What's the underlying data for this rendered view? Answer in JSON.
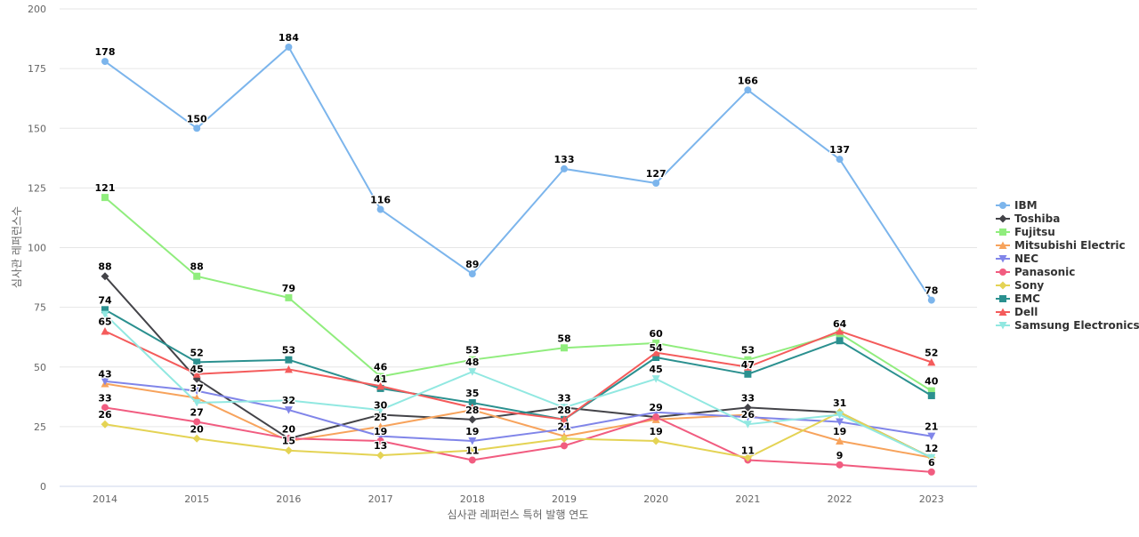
{
  "chart_data": {
    "type": "line",
    "xlabel": "심사관 레퍼런스 특허 발행 연도",
    "ylabel": "심사관 레퍼런스수",
    "ylim": [
      0,
      200
    ],
    "yticks": [
      0,
      25,
      50,
      75,
      100,
      125,
      150,
      175,
      200
    ],
    "categories": [
      "2014",
      "2015",
      "2016",
      "2017",
      "2018",
      "2019",
      "2020",
      "2021",
      "2022",
      "2023"
    ],
    "grid": "horizontal",
    "legend_position": "right",
    "series": [
      {
        "name": "IBM",
        "color": "#7cb5ec",
        "marker": "circle",
        "values": [
          178,
          150,
          184,
          116,
          89,
          133,
          127,
          166,
          137,
          78
        ]
      },
      {
        "name": "Toshiba",
        "color": "#434348",
        "marker": "diamond",
        "values": [
          88,
          45,
          20,
          30,
          28,
          33,
          29,
          33,
          31,
          12
        ]
      },
      {
        "name": "Fujitsu",
        "color": "#90ed7d",
        "marker": "square",
        "values": [
          121,
          88,
          79,
          46,
          53,
          58,
          60,
          53,
          64,
          40
        ]
      },
      {
        "name": "Mitsubishi Electric",
        "color": "#f7a35c",
        "marker": "triangle",
        "values": [
          43,
          37,
          19,
          25,
          32,
          21,
          28,
          30,
          19,
          12
        ]
      },
      {
        "name": "NEC",
        "color": "#8085e9",
        "marker": "triangle-down",
        "values": [
          44,
          40,
          32,
          21,
          19,
          24,
          31,
          29,
          27,
          21
        ]
      },
      {
        "name": "Panasonic",
        "color": "#f15c80",
        "marker": "circle",
        "values": [
          33,
          27,
          20,
          19,
          11,
          17,
          29,
          11,
          9,
          6
        ]
      },
      {
        "name": "Sony",
        "color": "#e4d354",
        "marker": "diamond",
        "values": [
          26,
          20,
          15,
          13,
          15,
          20,
          19,
          12,
          31,
          12
        ]
      },
      {
        "name": "EMC",
        "color": "#2b908f",
        "marker": "square",
        "values": [
          74,
          52,
          53,
          41,
          35,
          28,
          54,
          47,
          61,
          38
        ]
      },
      {
        "name": "Dell",
        "color": "#f45b5b",
        "marker": "triangle",
        "values": [
          65,
          47,
          49,
          42,
          33,
          28,
          56,
          50,
          65,
          52
        ]
      },
      {
        "name": "Samsung Electronics",
        "color": "#91e8e1",
        "marker": "triangle-down",
        "values": [
          72,
          35,
          36,
          32,
          48,
          33,
          45,
          26,
          30,
          12
        ]
      }
    ],
    "data_labels": [
      {
        "category": "2014",
        "text": "178",
        "value": 178
      },
      {
        "category": "2014",
        "text": "121",
        "value": 121
      },
      {
        "category": "2014",
        "text": "88",
        "value": 88
      },
      {
        "category": "2014",
        "text": "74",
        "value": 74
      },
      {
        "category": "2014",
        "text": "65",
        "value": 65
      },
      {
        "category": "2014",
        "text": "43",
        "value": 43
      },
      {
        "category": "2014",
        "text": "33",
        "value": 33
      },
      {
        "category": "2014",
        "text": "26",
        "value": 26
      },
      {
        "category": "2015",
        "text": "150",
        "value": 150
      },
      {
        "category": "2015",
        "text": "88",
        "value": 88
      },
      {
        "category": "2015",
        "text": "52",
        "value": 52
      },
      {
        "category": "2015",
        "text": "45",
        "value": 45
      },
      {
        "category": "2015",
        "text": "37",
        "value": 37
      },
      {
        "category": "2015",
        "text": "27",
        "value": 27
      },
      {
        "category": "2015",
        "text": "20",
        "value": 20
      },
      {
        "category": "2016",
        "text": "184",
        "value": 184
      },
      {
        "category": "2016",
        "text": "79",
        "value": 79
      },
      {
        "category": "2016",
        "text": "53",
        "value": 53
      },
      {
        "category": "2016",
        "text": "32",
        "value": 32
      },
      {
        "category": "2016",
        "text": "20",
        "value": 20
      },
      {
        "category": "2016",
        "text": "15",
        "value": 15
      },
      {
        "category": "2017",
        "text": "116",
        "value": 116
      },
      {
        "category": "2017",
        "text": "46",
        "value": 46
      },
      {
        "category": "2017",
        "text": "41",
        "value": 41
      },
      {
        "category": "2017",
        "text": "30",
        "value": 30
      },
      {
        "category": "2017",
        "text": "25",
        "value": 25
      },
      {
        "category": "2017",
        "text": "19",
        "value": 19
      },
      {
        "category": "2017",
        "text": "13",
        "value": 13
      },
      {
        "category": "2018",
        "text": "89",
        "value": 89
      },
      {
        "category": "2018",
        "text": "53",
        "value": 53
      },
      {
        "category": "2018",
        "text": "48",
        "value": 48
      },
      {
        "category": "2018",
        "text": "35",
        "value": 35
      },
      {
        "category": "2018",
        "text": "28",
        "value": 28
      },
      {
        "category": "2018",
        "text": "19",
        "value": 19
      },
      {
        "category": "2018",
        "text": "11",
        "value": 11
      },
      {
        "category": "2019",
        "text": "133",
        "value": 133
      },
      {
        "category": "2019",
        "text": "58",
        "value": 58
      },
      {
        "category": "2019",
        "text": "33",
        "value": 33
      },
      {
        "category": "2019",
        "text": "28",
        "value": 28
      },
      {
        "category": "2019",
        "text": "21",
        "value": 21
      },
      {
        "category": "2020",
        "text": "127",
        "value": 127
      },
      {
        "category": "2020",
        "text": "60",
        "value": 60
      },
      {
        "category": "2020",
        "text": "54",
        "value": 54
      },
      {
        "category": "2020",
        "text": "45",
        "value": 45
      },
      {
        "category": "2020",
        "text": "29",
        "value": 29
      },
      {
        "category": "2020",
        "text": "19",
        "value": 19
      },
      {
        "category": "2021",
        "text": "166",
        "value": 166
      },
      {
        "category": "2021",
        "text": "53",
        "value": 53
      },
      {
        "category": "2021",
        "text": "47",
        "value": 47
      },
      {
        "category": "2021",
        "text": "33",
        "value": 33
      },
      {
        "category": "2021",
        "text": "26",
        "value": 26
      },
      {
        "category": "2021",
        "text": "11",
        "value": 11
      },
      {
        "category": "2022",
        "text": "137",
        "value": 137
      },
      {
        "category": "2022",
        "text": "64",
        "value": 64
      },
      {
        "category": "2022",
        "text": "31",
        "value": 31
      },
      {
        "category": "2022",
        "text": "19",
        "value": 19
      },
      {
        "category": "2022",
        "text": "9",
        "value": 9
      },
      {
        "category": "2023",
        "text": "78",
        "value": 78
      },
      {
        "category": "2023",
        "text": "52",
        "value": 52
      },
      {
        "category": "2023",
        "text": "40",
        "value": 40
      },
      {
        "category": "2023",
        "text": "21",
        "value": 21
      },
      {
        "category": "2023",
        "text": "12",
        "value": 12
      },
      {
        "category": "2023",
        "text": "6",
        "value": 6
      }
    ]
  }
}
